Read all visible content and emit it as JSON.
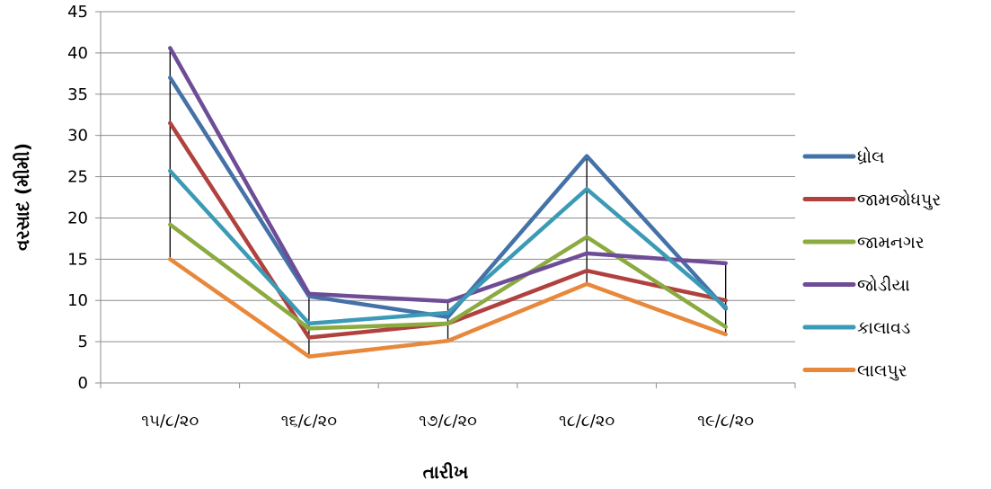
{
  "chart_data": {
    "type": "line",
    "title": "",
    "xlabel": "તારીખ",
    "ylabel": "વરસાદ (મીમી)",
    "categories": [
      "૧૫/૮/૨૦",
      "૧૬/૮/૨૦",
      "૧૭/૮/૨૦",
      "૧૮/૮/૨૦",
      "૧૯/૮/૨૦"
    ],
    "ylim": [
      0,
      45
    ],
    "yticks": [
      0,
      5,
      10,
      15,
      20,
      25,
      30,
      35,
      40,
      45
    ],
    "grid": true,
    "legend_position": "right",
    "high_low_lines": true,
    "series": [
      {
        "name": "ધ્રોલ",
        "color": "#4472A8",
        "values": [
          37,
          10.5,
          8,
          27.5,
          9
        ]
      },
      {
        "name": "જામજોધપુર",
        "color": "#B0413E",
        "values": [
          31.5,
          5.5,
          7.2,
          13.6,
          10
        ]
      },
      {
        "name": "જામનગર",
        "color": "#8BAA3F",
        "values": [
          19.2,
          6.6,
          7.2,
          17.7,
          6.8
        ]
      },
      {
        "name": "જોડીયા",
        "color": "#6E4C96",
        "values": [
          40.6,
          10.8,
          9.9,
          15.7,
          14.5
        ]
      },
      {
        "name": "કાલાવડ",
        "color": "#3B9AB5",
        "values": [
          25.7,
          7.2,
          8.5,
          23.5,
          9.2
        ]
      },
      {
        "name": "લાલપુર",
        "color": "#E8883A",
        "values": [
          15,
          3.2,
          5.1,
          12,
          5.9
        ]
      }
    ]
  }
}
